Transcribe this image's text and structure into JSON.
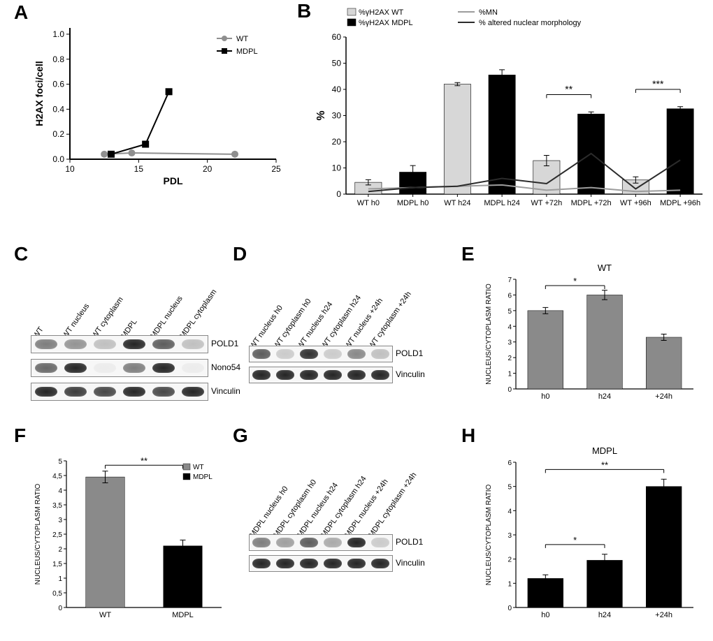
{
  "labels": {
    "A": "A",
    "B": "B",
    "C": "C",
    "D": "D",
    "E": "E",
    "F": "F",
    "G": "G",
    "H": "H"
  },
  "panelA": {
    "type": "line",
    "xlabel": "PDL",
    "ylabel": "H2AX foci/cell",
    "xlim": [
      10,
      25
    ],
    "ylim": [
      0,
      1.05
    ],
    "xticks": [
      10,
      15,
      20,
      25
    ],
    "yticks": [
      0.0,
      0.2,
      0.4,
      0.6,
      0.8,
      1.0
    ],
    "legend": [
      {
        "label": "WT",
        "marker": "circle",
        "color": "#8f8f8f"
      },
      {
        "label": "MDPL",
        "marker": "square",
        "color": "#000000"
      }
    ],
    "series": {
      "WT": {
        "color": "#8f8f8f",
        "marker": "circle",
        "points": [
          [
            12.5,
            0.04
          ],
          [
            14.5,
            0.05
          ],
          [
            22.0,
            0.04
          ]
        ]
      },
      "MDPL": {
        "color": "#000000",
        "marker": "square",
        "points": [
          [
            13.0,
            0.04
          ],
          [
            15.5,
            0.12
          ],
          [
            17.2,
            0.54
          ]
        ]
      }
    },
    "axis_color": "#000000",
    "line_width": 2,
    "marker_size": 5,
    "font_size_label": 14,
    "font_size_tick": 12,
    "background": "#ffffff"
  },
  "panelB": {
    "type": "bar_with_lines",
    "ylabel": "%",
    "ylim": [
      0,
      60
    ],
    "yticks": [
      0,
      10,
      20,
      30,
      40,
      50,
      60
    ],
    "categories": [
      "WT h0",
      "MDPL h0",
      "WT h24",
      "MDPL h24",
      "WT +72h",
      "MDPL +72h",
      "WT +96h",
      "MDPL +96h"
    ],
    "bar_values": [
      4.5,
      8.4,
      42.0,
      45.5,
      12.8,
      30.6,
      5.4,
      32.6
    ],
    "bar_err": [
      1.0,
      2.5,
      0.6,
      2.0,
      2.0,
      0.8,
      1.2,
      0.8
    ],
    "bar_colors": [
      "#d7d7d7",
      "#000000",
      "#d7d7d7",
      "#000000",
      "#d7d7d7",
      "#000000",
      "#d7d7d7",
      "#000000"
    ],
    "bar_legend": [
      {
        "label": "%γH2AX WT",
        "color": "#d7d7d7"
      },
      {
        "label": "%γH2AX MDPL",
        "color": "#000000"
      }
    ],
    "line_legend": [
      {
        "label": "%MN",
        "color": "#9c9c9c"
      },
      {
        "label": "% altered nuclear morphology",
        "color": "#2b2b2b"
      }
    ],
    "lines": {
      "MN": {
        "color": "#9c9c9c",
        "width": 2,
        "values": [
          2.0,
          2.5,
          3.0,
          3.5,
          1.5,
          2.5,
          1.0,
          1.5
        ]
      },
      "Morph": {
        "color": "#2b2b2b",
        "width": 2,
        "values": [
          1.0,
          2.5,
          3.0,
          6.0,
          4.0,
          15.5,
          2.0,
          13.0
        ]
      }
    },
    "sig": [
      {
        "left_cat": "WT +72h",
        "right_cat": "MDPL +72h",
        "y": 38,
        "label": "**"
      },
      {
        "left_cat": "WT +96h",
        "right_cat": "MDPL +96h",
        "y": 40,
        "label": "***"
      }
    ],
    "axis_color": "#000000",
    "grid": "off",
    "bar_width": 0.6,
    "font_size_label": 16,
    "font_size_tick": 11
  },
  "panelC": {
    "type": "western_blot",
    "lanes": [
      "WT",
      "WT nucleus",
      "WT cytoplasm",
      "MDPL",
      "MDPL nucleus",
      "MDPL cytoplasm"
    ],
    "rows": [
      {
        "label": "POLD1",
        "intensity": [
          0.55,
          0.45,
          0.25,
          0.95,
          0.7,
          0.25
        ]
      },
      {
        "label": "Nono54",
        "intensity": [
          0.65,
          0.95,
          0.05,
          0.55,
          0.95,
          0.05
        ]
      },
      {
        "label": "Vinculin",
        "intensity": [
          0.95,
          0.85,
          0.8,
          0.95,
          0.8,
          0.95
        ]
      }
    ],
    "band_color": "#1a1a1a",
    "background": "#f5f5f5",
    "lane_width": 42
  },
  "panelD": {
    "type": "western_blot",
    "lanes": [
      "WT nucleus h0",
      "WT cytoplasm h0",
      "WT nucleus h24",
      "WT cytoplasm h24",
      "WT nucleus +24h",
      "WT cytoplasm +24h"
    ],
    "rows": [
      {
        "label": "POLD1",
        "intensity": [
          0.7,
          0.2,
          0.9,
          0.2,
          0.5,
          0.25
        ]
      },
      {
        "label": "Vinculin",
        "intensity": [
          0.95,
          0.95,
          0.95,
          0.95,
          0.95,
          0.95
        ]
      }
    ],
    "band_color": "#1a1a1a",
    "background": "#f5f5f5",
    "lane_width": 34
  },
  "panelE": {
    "type": "bar",
    "title": "WT",
    "ylabel": "NUCLEUS/CYTOPLASM RATIO",
    "ylim": [
      0,
      7
    ],
    "yticks": [
      0,
      1,
      2,
      3,
      4,
      5,
      6,
      7
    ],
    "categories": [
      "h0",
      "h24",
      "+24h"
    ],
    "values": [
      5.0,
      6.0,
      3.3
    ],
    "err": [
      0.2,
      0.3,
      0.2
    ],
    "bar_color": "#8a8a8a",
    "sig": [
      {
        "left_cat": "h0",
        "right_cat": "h24",
        "y": 6.6,
        "label": "*"
      }
    ],
    "bar_width": 0.6
  },
  "panelF": {
    "type": "bar",
    "ylabel": "NUCLEUS/CYTOPLASM RATIO",
    "ylim": [
      0,
      5
    ],
    "yticks": [
      "0",
      "0,5",
      "1",
      "1,5",
      "2",
      "2,5",
      "3",
      "3,5",
      "4",
      "4,5",
      "5"
    ],
    "ytick_vals": [
      0,
      0.5,
      1,
      1.5,
      2,
      2.5,
      3,
      3.5,
      4,
      4.5,
      5
    ],
    "categories": [
      "WT",
      "MDPL"
    ],
    "values": [
      4.45,
      2.1
    ],
    "err": [
      0.2,
      0.2
    ],
    "bar_colors": [
      "#8a8a8a",
      "#000000"
    ],
    "legend": [
      {
        "label": "WT",
        "color": "#8a8a8a"
      },
      {
        "label": "MDPL",
        "color": "#000000"
      }
    ],
    "sig": [
      {
        "left_cat": "WT",
        "right_cat": "MDPL",
        "y": 4.85,
        "label": "**"
      }
    ],
    "bar_width": 0.5
  },
  "panelG": {
    "type": "western_blot",
    "lanes": [
      "MDPL nucleus h0",
      "MDPL cytoplasm h0",
      "MDPL nucleus h24",
      "MDPL cytoplasm h24",
      "MDPL nucleus +24h",
      "MDPL cytoplasm +24h"
    ],
    "rows": [
      {
        "label": "POLD1",
        "intensity": [
          0.55,
          0.4,
          0.7,
          0.35,
          0.95,
          0.2
        ]
      },
      {
        "label": "Vinculin",
        "intensity": [
          0.95,
          0.95,
          0.95,
          0.95,
          0.95,
          0.95
        ]
      }
    ],
    "band_color": "#1a1a1a",
    "background": "#f5f5f5",
    "lane_width": 34
  },
  "panelH": {
    "type": "bar",
    "title": "MDPL",
    "ylabel": "NUCLEUS/CYTOPLASM RATIO",
    "ylim": [
      0,
      6
    ],
    "yticks": [
      0,
      1,
      2,
      3,
      4,
      5,
      6
    ],
    "categories": [
      "h0",
      "h24",
      "+24h"
    ],
    "values": [
      1.2,
      1.95,
      5.0
    ],
    "err": [
      0.15,
      0.25,
      0.3
    ],
    "bar_color": "#000000",
    "sig": [
      {
        "left_cat": "h0",
        "right_cat": "h24",
        "y": 2.6,
        "label": "*"
      },
      {
        "left_cat": "h0",
        "right_cat": "+24h",
        "y": 5.7,
        "label": "**"
      }
    ],
    "bar_width": 0.6
  }
}
